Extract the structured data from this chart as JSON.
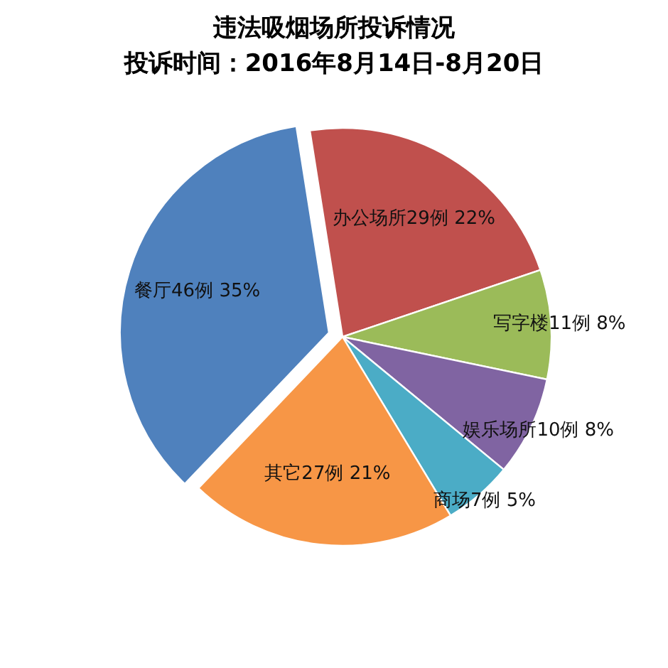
{
  "chart_data": {
    "type": "pie",
    "title": "违法吸烟场所投诉情况",
    "subtitle": "投诉时间：2016年8月14日-8月20日",
    "categories": [
      "办公场所",
      "写字楼",
      "娱乐场所",
      "商场",
      "其它",
      "餐厅"
    ],
    "values": [
      29,
      11,
      10,
      7,
      27,
      46
    ],
    "colors": [
      "#c0504d",
      "#9bbb59",
      "#8064a2",
      "#4bacc6",
      "#f79646",
      "#4f81bd"
    ],
    "value_labels": [
      "29例 22%",
      "11例 8%",
      "10例 8%",
      "7例 5%",
      "27例 21%",
      "46例 35%"
    ]
  }
}
